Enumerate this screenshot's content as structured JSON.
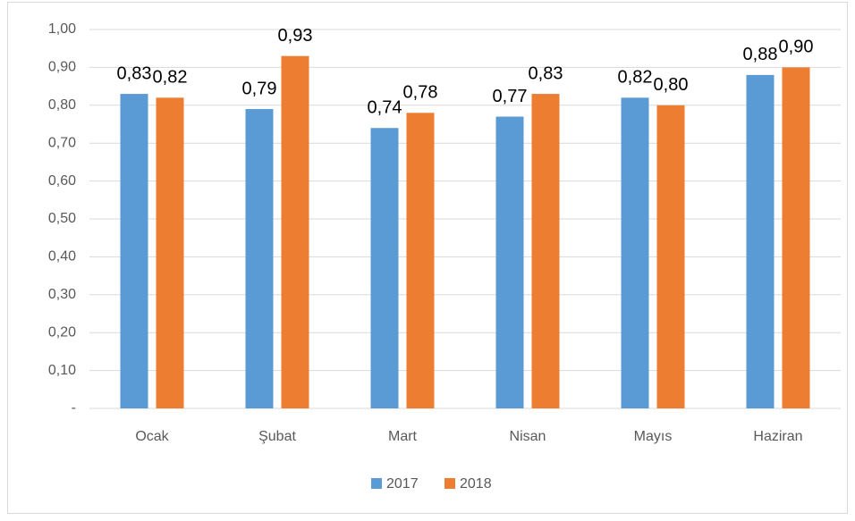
{
  "chart_data": {
    "type": "bar",
    "categories": [
      "Ocak",
      "Şubat",
      "Mart",
      "Nisan",
      "Mayıs",
      "Haziran"
    ],
    "series": [
      {
        "name": "2017",
        "color": "#5b9bd5",
        "values": [
          0.83,
          0.79,
          0.74,
          0.77,
          0.82,
          0.88
        ],
        "value_labels": [
          "0,83",
          "0,79",
          "0,74",
          "0,77",
          "0,82",
          "0,88"
        ]
      },
      {
        "name": "2018",
        "color": "#ed7d31",
        "values": [
          0.82,
          0.93,
          0.78,
          0.83,
          0.8,
          0.9
        ],
        "value_labels": [
          "0,82",
          "0,93",
          "0,78",
          "0,83",
          "0,80",
          "0,90"
        ]
      }
    ],
    "ylim": [
      0,
      1
    ],
    "yticks": [
      {
        "value": 0,
        "label": "-"
      },
      {
        "value": 0.1,
        "label": "0,10"
      },
      {
        "value": 0.2,
        "label": "0,20"
      },
      {
        "value": 0.3,
        "label": "0,30"
      },
      {
        "value": 0.4,
        "label": "0,40"
      },
      {
        "value": 0.5,
        "label": "0,50"
      },
      {
        "value": 0.6,
        "label": "0,60"
      },
      {
        "value": 0.7,
        "label": "0,70"
      },
      {
        "value": 0.8,
        "label": "0,80"
      },
      {
        "value": 0.9,
        "label": "0,90"
      },
      {
        "value": 1,
        "label": "1,00"
      }
    ],
    "grid": true,
    "legend": "bottom"
  }
}
